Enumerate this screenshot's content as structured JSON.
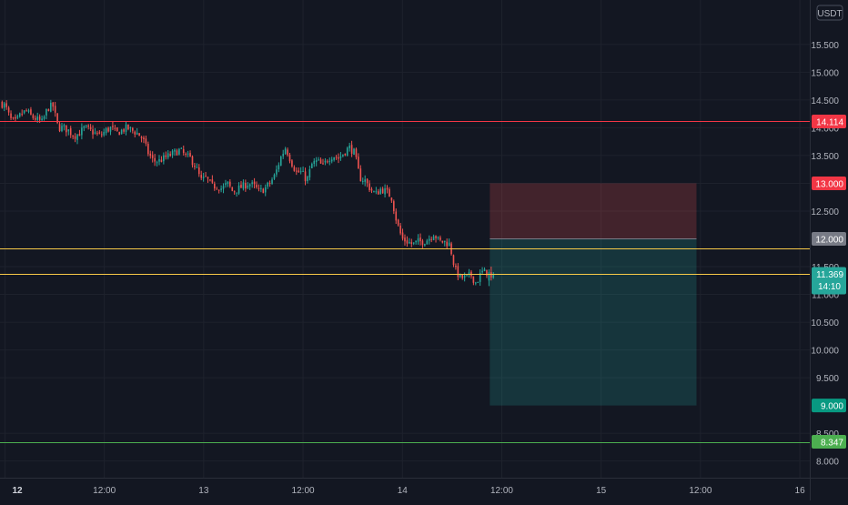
{
  "currency": "USDT",
  "colors": {
    "background": "#131722",
    "grid": "#1e222d",
    "axis_text": "#b2b5be",
    "up": "#26a69a",
    "down": "#ef5350",
    "line_red": "#f23645",
    "line_yellow": "#f7c948",
    "line_green": "#4caf50",
    "last_price_tag": "#26a69a",
    "gray_tag": "#787b86",
    "stop_zone": "#ef5350",
    "target_zone": "#26a69a"
  },
  "chart_data": {
    "type": "candlestick",
    "title": "",
    "xlabel": "",
    "ylabel": "",
    "ylim": [
      7.7,
      16.3
    ],
    "y_ticks": [
      "8.000",
      "8.500",
      "9.500",
      "10.000",
      "10.500",
      "11.000",
      "11.500",
      "12.500",
      "13.000",
      "13.500",
      "14.000",
      "14.500",
      "15.000",
      "15.500"
    ],
    "x_ticks": [
      {
        "label": "12",
        "bold": true,
        "day": 12.0
      },
      {
        "label": "12:00",
        "bold": false,
        "day": 12.5
      },
      {
        "label": "13",
        "bold": false,
        "day": 13.0
      },
      {
        "label": "12:00",
        "bold": false,
        "day": 13.5
      },
      {
        "label": "14",
        "bold": false,
        "day": 14.0
      },
      {
        "label": "12:00",
        "bold": false,
        "day": 14.5
      },
      {
        "label": "15",
        "bold": false,
        "day": 15.0
      },
      {
        "label": "12:00",
        "bold": false,
        "day": 15.5
      },
      {
        "label": "16",
        "bold": false,
        "day": 16.0
      }
    ],
    "x_range_days": [
      11.975,
      16.05
    ],
    "path_start_day": 11.98,
    "path_end_day": 14.43,
    "candle_count": 220,
    "candle_path": [
      14.45,
      14.4,
      14.15,
      14.1,
      14.25,
      14.3,
      14.2,
      14.15,
      14.1,
      14.35,
      14.4,
      14.0,
      14.0,
      13.95,
      13.85,
      13.9,
      14.0,
      13.95,
      13.9,
      13.85,
      13.95,
      14.0,
      13.9,
      13.95,
      14.0,
      13.95,
      13.9,
      13.8,
      13.55,
      13.4,
      13.4,
      13.45,
      13.5,
      13.55,
      13.6,
      13.5,
      13.45,
      13.3,
      13.05,
      13.1,
      12.95,
      12.95,
      12.9,
      13.0,
      12.85,
      12.9,
      12.95,
      13.0,
      12.95,
      12.85,
      12.9,
      13.0,
      13.15,
      13.45,
      13.65,
      13.4,
      13.2,
      13.2,
      13.05,
      13.35,
      13.4,
      13.3,
      13.45,
      13.5,
      13.45,
      13.55,
      13.65,
      13.55,
      13.1,
      13.05,
      12.9,
      12.8,
      12.9,
      12.85,
      12.75,
      12.3,
      12.0,
      11.95,
      11.9,
      11.95,
      11.95,
      12.0,
      12.1,
      11.95,
      11.95,
      11.9,
      11.45,
      11.3,
      11.3,
      11.35,
      11.2,
      11.4,
      11.4
    ],
    "last_candles": [
      [
        11.25,
        11.4,
        11.45,
        11.15
      ],
      [
        11.4,
        11.3,
        11.5,
        11.25
      ],
      [
        11.3,
        11.369,
        11.4,
        11.28
      ]
    ],
    "horizontal_lines": [
      {
        "value": 14.114,
        "color": "#f23645"
      },
      {
        "value": 11.83,
        "color": "#f7c948"
      },
      {
        "value": 11.37,
        "color": "#f7c948"
      },
      {
        "value": 8.347,
        "color": "#4caf50"
      }
    ],
    "position_tool": {
      "entry": 12.0,
      "stop": 13.0,
      "target": 9.0,
      "start_day": 14.44,
      "end_day": 15.48
    },
    "price_tags": [
      {
        "label": "14.114",
        "value": 14.114,
        "color": "#f23645"
      },
      {
        "label": "13.000",
        "value": 13.0,
        "color": "#f23645"
      },
      {
        "label": "12.000",
        "value": 12.0,
        "color": "#787b86"
      },
      {
        "label": "11.369",
        "sublabel": "14:10",
        "value": 11.369,
        "color": "#26a69a"
      },
      {
        "label": "9.000",
        "value": 9.0,
        "color": "#089981"
      },
      {
        "label": "8.347",
        "value": 8.347,
        "color": "#4caf50"
      }
    ],
    "last_price": 11.369,
    "countdown": "14:10"
  }
}
